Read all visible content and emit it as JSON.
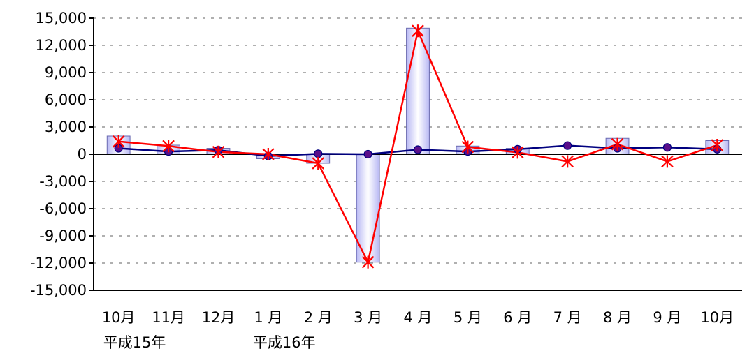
{
  "chart_data": {
    "type": "bar",
    "categories": [
      "10月",
      "11月",
      "12月",
      "1 月",
      "2 月",
      "3 月",
      "4 月",
      "5 月",
      "6 月",
      "7 月",
      "8 月",
      "9 月",
      "10月"
    ],
    "year_labels": [
      {
        "category_index": 0,
        "text": "平成15年"
      },
      {
        "category_index": 3,
        "text": "平成16年"
      }
    ],
    "ylim": [
      -15000,
      15000
    ],
    "yticks": [
      15000,
      12000,
      9000,
      6000,
      3000,
      0,
      -3000,
      -6000,
      -9000,
      -12000,
      -15000
    ],
    "ytick_labels": [
      "15,000",
      "12,000",
      "9,000",
      "6,000",
      "3,000",
      "0",
      "-3,000",
      "-6,000",
      "-9,000",
      "-12,000",
      "-15,000"
    ],
    "grid": true,
    "series": [
      {
        "type": "bar",
        "values": [
          2000,
          1000,
          650,
          -500,
          -1000,
          -11900,
          13900,
          900,
          650,
          0,
          1750,
          0,
          1500
        ]
      },
      {
        "type": "line",
        "marker": "circle",
        "values": [
          650,
          300,
          450,
          -200,
          50,
          0,
          500,
          300,
          550,
          950,
          650,
          750,
          550
        ]
      },
      {
        "type": "line",
        "marker": "star",
        "values": [
          1400,
          900,
          250,
          0,
          -1000,
          -11900,
          13600,
          800,
          200,
          -800,
          1100,
          -800,
          1000
        ]
      }
    ],
    "colors": {
      "bar_fill_edge": "#b8b8f4",
      "bar_fill_center": "#ffffff",
      "bar_stroke": "#6a6ab0",
      "circle_line": "#00007f",
      "circle_marker": "#5a0e8a",
      "star_line": "#ff0000",
      "axis": "#000000",
      "grid": "#808080"
    }
  }
}
